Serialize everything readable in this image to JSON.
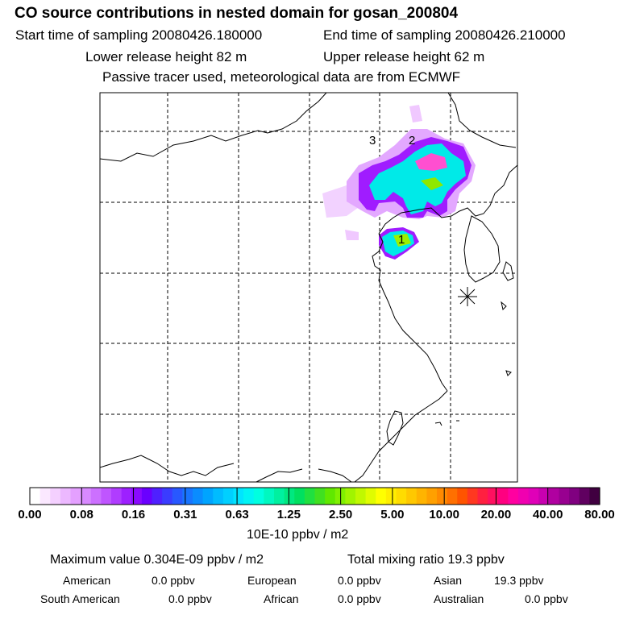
{
  "header": {
    "title": "CO  source contributions in nested domain for gosan_200804",
    "start_label": "Start time of sampling 20080426.180000",
    "end_label": "End time of sampling 20080426.210000",
    "lower_label": "Lower release height   82 m",
    "upper_label": "Upper release height   62 m",
    "note": "Passive tracer used, meteorological data are from ECMWF"
  },
  "map": {
    "source_labels": [
      "1",
      "2",
      "3"
    ],
    "receptor_marker": "receptor-star"
  },
  "colorbar": {
    "tick_labels": [
      "0.00",
      "0.08",
      "0.16",
      "0.31",
      "0.63",
      "1.25",
      "2.50",
      "5.00",
      "10.00",
      "20.00",
      "40.00",
      "80.00"
    ],
    "units": "10E-10 ppbv / m2",
    "colors": [
      "#ffffff",
      "#fbe8ff",
      "#f4d0ff",
      "#ecb8ff",
      "#e4a0ff",
      "#d88aff",
      "#cc70ff",
      "#bf55ff",
      "#b03cff",
      "#9d20ff",
      "#8a0aff",
      "#6a00ff",
      "#4f20ff",
      "#3a3cff",
      "#2858ff",
      "#1874ff",
      "#0a8cff",
      "#00a4ff",
      "#00bcff",
      "#00d0ff",
      "#00e4ff",
      "#00f4f4",
      "#00ffe0",
      "#00f8c0",
      "#00f0a0",
      "#00e880",
      "#00e060",
      "#20e040",
      "#40e020",
      "#60e800",
      "#80f000",
      "#a0f400",
      "#c0f800",
      "#e0fc00",
      "#ffff00",
      "#ffee00",
      "#ffdc00",
      "#ffc800",
      "#ffb400",
      "#ffa000",
      "#ff8a00",
      "#ff7000",
      "#ff5400",
      "#ff3820",
      "#ff2040",
      "#ff1060",
      "#ff0080",
      "#ff00a0",
      "#f000b0",
      "#e000b8",
      "#c800b0",
      "#b000a0",
      "#980090",
      "#800080",
      "#600060",
      "#400040"
    ]
  },
  "summary": {
    "max_label": "Maximum value  0.304E-09 ppbv / m2",
    "total_label": "Total mixing ratio       19.3 ppbv",
    "regions": [
      {
        "name": "American",
        "value": "0.0 ppbv"
      },
      {
        "name": "European",
        "value": "0.0 ppbv"
      },
      {
        "name": "Asian",
        "value": "19.3 ppbv"
      },
      {
        "name": "South American",
        "value": "0.0 ppbv"
      },
      {
        "name": "African",
        "value": "0.0 ppbv"
      },
      {
        "name": "Australian",
        "value": "0.0 ppbv"
      }
    ]
  }
}
